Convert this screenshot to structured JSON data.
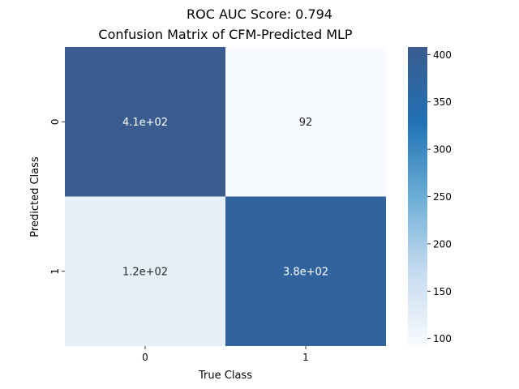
{
  "suptitle": "ROC AUC Score: 0.794",
  "chart_data": {
    "type": "heatmap",
    "title": "Confusion Matrix of CFM-Predicted MLP",
    "xlabel": "True Class",
    "ylabel": "Predicted Class",
    "x_categories": [
      "0",
      "1"
    ],
    "y_categories": [
      "0",
      "1"
    ],
    "values": [
      [
        408,
        92
      ],
      [
        120,
        380
      ]
    ],
    "annotations": [
      [
        "4.1e+02",
        "92"
      ],
      [
        "1.2e+02",
        "3.8e+02"
      ]
    ],
    "colorbar": {
      "min": 92,
      "max": 408,
      "ticks": [
        "100",
        "150",
        "200",
        "250",
        "300",
        "350",
        "400"
      ],
      "colors": [
        "#f7fbff",
        "#c6dbef",
        "#6baed6",
        "#2171b5",
        "#3a5c8f"
      ]
    },
    "grid": false
  }
}
